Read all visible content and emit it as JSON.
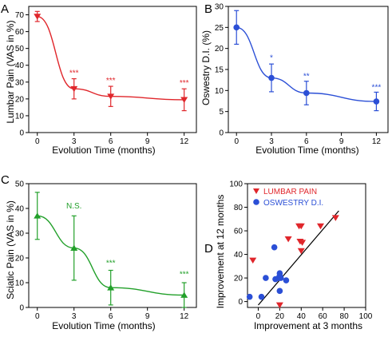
{
  "figure": {
    "panels": [
      {
        "letter": "A",
        "xlabel": "Evolution Time (months)",
        "ylabel": "Lumbar Pain (VAS in %)",
        "color": "#e0262b",
        "marker": "triangle-down"
      },
      {
        "letter": "B",
        "xlabel": "Evolution Time (months)",
        "ylabel": "Oswestry D.I. (%)",
        "color": "#2b4fd6",
        "marker": "circle"
      },
      {
        "letter": "C",
        "xlabel": "Evolution Time (months)",
        "ylabel": "Sciatic Pain (VAS in %)",
        "color": "#22a02a",
        "marker": "triangle-up"
      },
      {
        "letter": "D",
        "xlabel": "Improvement at 3 months",
        "ylabel": "Improvement at 12 months",
        "legend": [
          "LUMBAR PAIN",
          "OSWESTRY D.I."
        ]
      }
    ]
  },
  "chart_data": [
    {
      "type": "line",
      "xlabel": "Evolution Time (months)",
      "ylabel": "Lumbar Pain (VAS in %)",
      "x": [
        0,
        3,
        6,
        12
      ],
      "xticks": [
        0,
        3,
        6,
        9,
        12
      ],
      "xlim": [
        -0.7,
        13
      ],
      "ylim": [
        0,
        75
      ],
      "yticks": [
        0,
        10,
        20,
        30,
        40,
        50,
        60,
        70
      ],
      "series": [
        {
          "values": [
            69,
            26,
            21.5,
            19.5
          ],
          "error": [
            3,
            6,
            6,
            6.5
          ],
          "color": "#e0262b",
          "marker": "triangle-down"
        }
      ],
      "annotations": [
        {
          "x": 3,
          "y": 34,
          "text": "***"
        },
        {
          "x": 6,
          "y": 29.5,
          "text": "***"
        },
        {
          "x": 12,
          "y": 28,
          "text": "***"
        }
      ]
    },
    {
      "type": "line",
      "xlabel": "Evolution Time (months)",
      "ylabel": "Oswestry D.I. (%)",
      "x": [
        0,
        3,
        6,
        12
      ],
      "xticks": [
        0,
        3,
        6,
        9,
        12
      ],
      "xlim": [
        -0.7,
        13
      ],
      "ylim": [
        0,
        30
      ],
      "yticks": [
        0,
        5,
        10,
        15,
        20,
        25,
        30
      ],
      "series": [
        {
          "values": [
            25,
            13,
            9.4,
            7.4
          ],
          "error": [
            4,
            3.3,
            2.8,
            2.2
          ],
          "color": "#2b4fd6",
          "marker": "circle"
        }
      ],
      "annotations": [
        {
          "x": 3,
          "y": 17.2,
          "text": "*"
        },
        {
          "x": 6,
          "y": 12.8,
          "text": "**"
        },
        {
          "x": 12,
          "y": 10.2,
          "text": "***"
        }
      ]
    },
    {
      "type": "line",
      "xlabel": "Evolution Time (months)",
      "ylabel": "Sciatic Pain (VAS in %)",
      "x": [
        0,
        3,
        6,
        12
      ],
      "xticks": [
        0,
        3,
        6,
        9,
        12
      ],
      "xlim": [
        -0.7,
        13
      ],
      "ylim": [
        0,
        50
      ],
      "yticks": [
        0,
        10,
        20,
        30,
        40,
        50
      ],
      "series": [
        {
          "values": [
            37,
            24,
            8,
            5
          ],
          "error": [
            9.5,
            13,
            7,
            5
          ],
          "color": "#22a02a",
          "marker": "triangle-up"
        }
      ],
      "annotations": [
        {
          "x": 3,
          "y": 40,
          "text": "N.S."
        },
        {
          "x": 6,
          "y": 17,
          "text": "***"
        },
        {
          "x": 12,
          "y": 12.5,
          "text": "***"
        }
      ]
    },
    {
      "type": "scatter",
      "xlabel": "Improvement at 3 months",
      "ylabel": "Improvement at 12 months",
      "xlim": [
        -10,
        100
      ],
      "ylim": [
        -5,
        100
      ],
      "xticks": [
        0,
        20,
        40,
        60,
        80,
        100
      ],
      "yticks": [
        0,
        20,
        40,
        60,
        80,
        100
      ],
      "legend_position": "top-left",
      "series": [
        {
          "name": "LUMBAR PAIN",
          "color": "#e0262b",
          "marker": "triangle-down",
          "points": [
            [
              -5,
              35
            ],
            [
              20,
              -3
            ],
            [
              28,
              53
            ],
            [
              38,
              64
            ],
            [
              40,
              64
            ],
            [
              39,
              51
            ],
            [
              41,
              50
            ],
            [
              40,
              43
            ],
            [
              58,
              64
            ],
            [
              72,
              71
            ]
          ]
        },
        {
          "name": "OSWESTRY D.I.",
          "color": "#2b4fd6",
          "marker": "circle",
          "points": [
            [
              -8,
              4
            ],
            [
              3,
              4
            ],
            [
              7,
              20
            ],
            [
              15,
              46
            ],
            [
              16,
              19
            ],
            [
              19,
              20
            ],
            [
              20,
              22
            ],
            [
              20,
              24
            ],
            [
              21,
              20
            ],
            [
              26,
              18
            ],
            [
              20,
              9
            ]
          ]
        }
      ],
      "fit_line": {
        "x": [
          0,
          75
        ],
        "y": [
          -3,
          77
        ],
        "color": "#000000"
      }
    }
  ]
}
